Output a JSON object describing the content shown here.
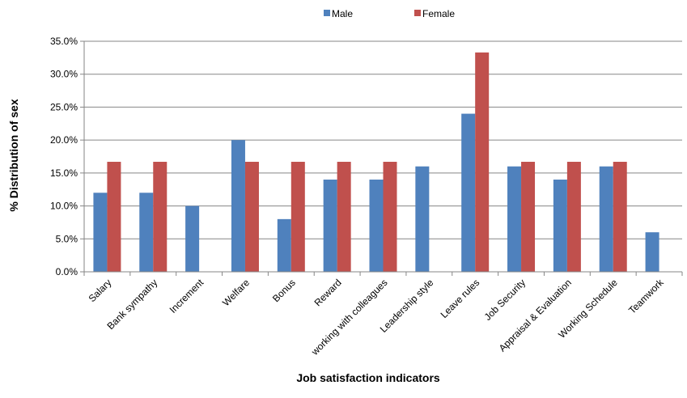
{
  "chart_data": {
    "type": "bar",
    "title": "",
    "xlabel": "Job satisfaction indicators",
    "ylabel": "% Distribution of sex",
    "ylim": [
      0,
      35
    ],
    "yticks": [
      "0.0%",
      "5.0%",
      "10.0%",
      "15.0%",
      "20.0%",
      "25.0%",
      "30.0%",
      "35.0%"
    ],
    "grid": "horizontal",
    "legend_position": "top",
    "categories": [
      "Salary",
      "Bank sympathy",
      "Increment",
      "Welfare",
      "Bonus",
      "Reward",
      "working with colleagues",
      "Leadership style",
      "Leave rules",
      "Job Security",
      "Appraisal & Evaluation",
      "Working Schedule",
      "Teamwork"
    ],
    "series": [
      {
        "name": "Male",
        "color": "#4F81BD",
        "values": [
          12.0,
          12.0,
          10.0,
          20.0,
          8.0,
          14.0,
          14.0,
          16.0,
          24.0,
          16.0,
          14.0,
          16.0,
          6.0
        ]
      },
      {
        "name": "Female",
        "color": "#C0504D",
        "values": [
          16.7,
          16.7,
          0,
          16.7,
          16.7,
          16.7,
          16.7,
          0,
          33.3,
          16.7,
          16.7,
          16.7,
          0
        ]
      }
    ]
  }
}
